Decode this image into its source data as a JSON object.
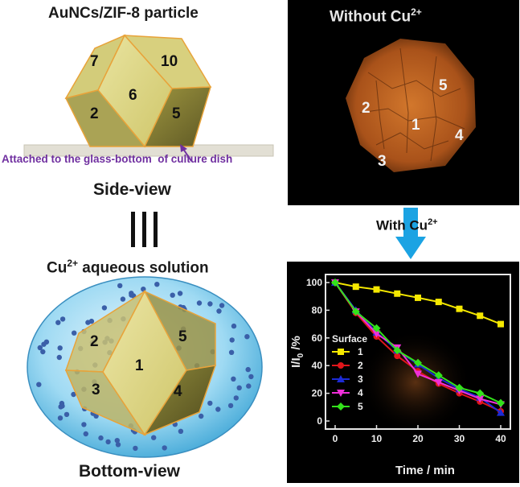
{
  "left": {
    "title_top": "AuNCs/ZIF-8 particle",
    "side_faces": [
      "7",
      "10",
      "6",
      "2",
      "5"
    ],
    "attached_note": "Attached to the glass-bottom  of culture dish",
    "side_view_label": "Side-view",
    "solution_label_prefix": "Cu",
    "solution_label_sup": "2+",
    "solution_label_suffix": " aqueous solution",
    "bottom_faces": [
      "2",
      "5",
      "1",
      "3",
      "4"
    ],
    "bottom_view_label": "Bottom-view"
  },
  "right": {
    "without_label_prefix": "Without Cu",
    "without_label_sup": "2+",
    "micro_faces": [
      "5",
      "2",
      "1",
      "4",
      "3"
    ],
    "with_label_prefix": "With Cu",
    "with_label_sup": "2+"
  },
  "colors": {
    "crystal_face": "#d9d27a",
    "crystal_edge": "#e8a33a",
    "glass": "#e2dfd4",
    "note_purple": "#7030a0",
    "arrow_blue": "#1ba3e3",
    "sphere_blue": "#7fcdf0",
    "dot_blue": "#3a5fa8",
    "micro_orange": "#c8641e"
  },
  "chart_data": {
    "type": "line",
    "title": "",
    "xlabel": "Time / min",
    "ylabel": "I/I0 /%",
    "xlim": [
      0,
      40
    ],
    "ylim": [
      0,
      100
    ],
    "xticks": [
      0,
      10,
      20,
      30,
      40
    ],
    "yticks": [
      0,
      20,
      40,
      60,
      80,
      100
    ],
    "legend_title": "Surface",
    "legend_position": "left",
    "x": [
      0,
      5,
      10,
      15,
      20,
      25,
      30,
      35,
      40
    ],
    "series": [
      {
        "name": "1",
        "color": "#f5e800",
        "marker": "square",
        "values": [
          100,
          97,
          95,
          92,
          89,
          86,
          81,
          76,
          70
        ]
      },
      {
        "name": "2",
        "color": "#e0161b",
        "marker": "circle",
        "values": [
          100,
          78,
          61,
          47,
          36,
          27,
          20,
          14,
          7
        ]
      },
      {
        "name": "3",
        "color": "#1c2bd6",
        "marker": "triangle-up",
        "values": [
          100,
          80,
          64,
          51,
          41,
          31,
          23,
          17,
          6
        ]
      },
      {
        "name": "4",
        "color": "#ef2fd8",
        "marker": "triangle-down",
        "values": [
          100,
          79,
          63,
          53,
          34,
          28,
          22,
          16,
          12
        ]
      },
      {
        "name": "5",
        "color": "#33e21b",
        "marker": "diamond",
        "values": [
          100,
          79,
          67,
          51,
          42,
          33,
          24,
          20,
          13
        ]
      }
    ]
  }
}
